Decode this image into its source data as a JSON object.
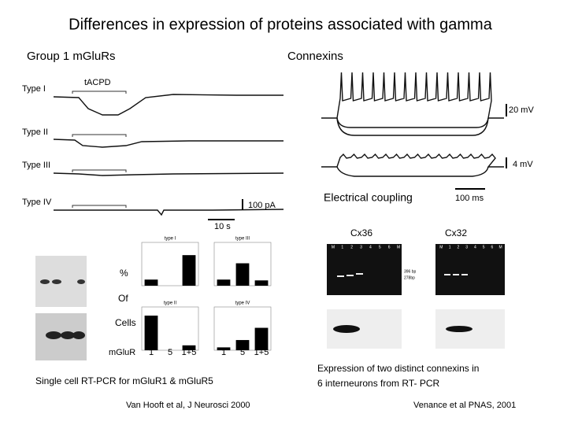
{
  "title": "Differences in expression of proteins associated with gamma",
  "left": {
    "heading": "Group 1 mGluRs",
    "trace_labels": [
      "Type I",
      "Type II",
      "Type III",
      "Type IV"
    ],
    "drug": "tACPD",
    "scale_current": "100 pA",
    "scale_time": "10 s",
    "row_labels": [
      "%",
      "Of",
      "Cells"
    ],
    "x_label": "mGluR",
    "panels": [
      {
        "name": "type I",
        "categories": [
          "1",
          "5",
          "1+5"
        ],
        "values": [
          15,
          0,
          75
        ]
      },
      {
        "name": "type III",
        "categories": [
          "1",
          "5",
          "1+5"
        ],
        "values": [
          15,
          55,
          13
        ]
      },
      {
        "name": "type II",
        "categories": [
          "1",
          "5",
          "1+5"
        ],
        "values": [
          85,
          0,
          12
        ]
      },
      {
        "name": "type IV",
        "categories": [
          "1",
          "5",
          "1+5"
        ],
        "values": [
          7,
          25,
          55
        ]
      }
    ],
    "caption": "Single cell RT-PCR for mGluR1 & mGluR5",
    "citation": "Van Hooft et al, J Neurosci 2000"
  },
  "right": {
    "heading": "Connexins",
    "scale_voltage_1": "20 mV",
    "scale_voltage_2": "4 mV",
    "coupling_label": "Electrical coupling",
    "scale_time": "100 ms",
    "gels": [
      {
        "name": "Cx36",
        "lanes": [
          "M",
          "1",
          "2",
          "3",
          "4",
          "5",
          "6",
          "M"
        ],
        "markers": [
          "396 bp",
          "278bp"
        ]
      },
      {
        "name": "Cx32",
        "lanes": [
          "M",
          "1",
          "2",
          "3",
          "4",
          "5",
          "6",
          "M"
        ]
      }
    ],
    "caption": [
      "Expression of two distinct connexins in",
      "6 interneurons from RT- PCR"
    ],
    "citation": "Venance et al PNAS, 2001"
  }
}
